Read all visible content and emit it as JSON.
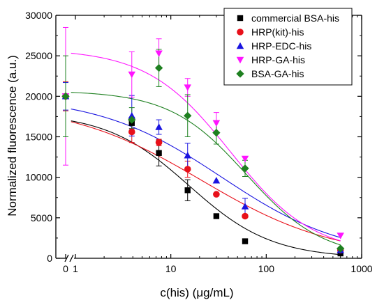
{
  "chart_data": {
    "type": "scatter",
    "title": "",
    "xlabel": "c(his) (μg/mL)",
    "ylabel": "Normalized fluorescence (a.u.)",
    "x_scale": "log",
    "x_axis_break": true,
    "xlim": [
      1,
      1000
    ],
    "ylim": [
      0,
      30000
    ],
    "x_ticks": [
      {
        "value": 0,
        "label": "0",
        "segment": "zero"
      },
      {
        "value": 1,
        "label": "1"
      },
      {
        "value": 10,
        "label": "10"
      },
      {
        "value": 100,
        "label": "100"
      },
      {
        "value": 1000,
        "label": "1000"
      }
    ],
    "y_ticks": [
      {
        "value": 0,
        "label": "0"
      },
      {
        "value": 5000,
        "label": "5000"
      },
      {
        "value": 10000,
        "label": "10000"
      },
      {
        "value": 15000,
        "label": "15000"
      },
      {
        "value": 20000,
        "label": "20000"
      },
      {
        "value": 25000,
        "label": "25000"
      },
      {
        "value": 30000,
        "label": "30000"
      }
    ],
    "grid": false,
    "legend_position": "top-right",
    "series": [
      {
        "name": "commercial BSA-his",
        "color": "#000000",
        "marker": "square",
        "x": [
          0,
          3.9,
          7.5,
          15,
          30,
          60,
          600
        ],
        "y": [
          20000,
          16700,
          13000,
          8400,
          5200,
          2100,
          600
        ],
        "err": [
          0,
          700,
          1600,
          1300,
          0,
          0,
          0
        ],
        "fit": {
          "top": 17950,
          "bottom": 0,
          "ec50": 15.5,
          "hill": 1.0
        }
      },
      {
        "name": "HRP(kit)-his",
        "color": "#e8101a",
        "marker": "circle",
        "x": [
          0,
          3.9,
          7.5,
          15,
          30,
          60,
          600
        ],
        "y": [
          20000,
          15600,
          14300,
          11000,
          7900,
          5200,
          1000
        ],
        "err": [
          1800,
          1300,
          400,
          1000,
          0,
          0,
          0
        ],
        "fit": {
          "top": 19250,
          "bottom": 0,
          "ec50": 21,
          "hill": 0.62
        }
      },
      {
        "name": "HRP-EDC-his",
        "color": "#1a14e0",
        "marker": "triangle-up",
        "x": [
          0,
          3.9,
          7.5,
          15,
          30,
          60,
          600
        ],
        "y": [
          20000,
          17600,
          16200,
          12700,
          9600,
          6400,
          1000
        ],
        "err": [
          1700,
          2500,
          900,
          1500,
          0,
          1000,
          0
        ],
        "fit": {
          "top": 20050,
          "bottom": 0,
          "ec50": 34,
          "hill": 0.67
        }
      },
      {
        "name": "HRP-GA-his",
        "color": "#ff14ff",
        "marker": "triangle-down",
        "x": [
          0,
          3.9,
          7.5,
          15,
          30,
          60,
          600
        ],
        "y": [
          20000,
          22700,
          25300,
          21100,
          16700,
          12300,
          2800
        ],
        "err": [
          8500,
          2800,
          1800,
          1100,
          1300,
          0,
          0
        ],
        "fit": {
          "top": 25850,
          "bottom": 500,
          "ec50": 42,
          "hill": 1.0
        }
      },
      {
        "name": "BSA-GA-his",
        "color": "#1e8020",
        "marker": "diamond",
        "x": [
          0,
          3.9,
          7.5,
          15,
          30,
          60,
          600
        ],
        "y": [
          20000,
          17100,
          23500,
          17600,
          15500,
          11100,
          1200
        ],
        "err": [
          5000,
          1500,
          2300,
          2600,
          1400,
          1000,
          0
        ],
        "fit": {
          "top": 20700,
          "bottom": 0,
          "ec50": 62,
          "hill": 1.08
        }
      }
    ]
  }
}
